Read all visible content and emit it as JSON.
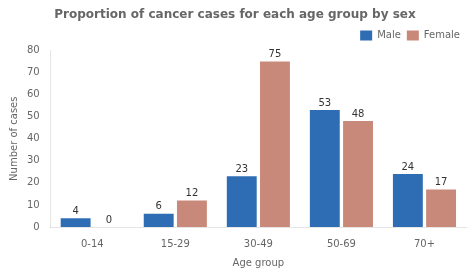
{
  "chart_data": {
    "type": "bar",
    "title": "Proportion of cancer cases for each age group by sex",
    "xlabel": "Age group",
    "ylabel": "Number of cases",
    "categories": [
      "0-14",
      "15-29",
      "30-49",
      "50-69",
      "70+"
    ],
    "series": [
      {
        "name": "Male",
        "color": "#2E6DB4",
        "values": [
          4,
          6,
          23,
          53,
          24
        ]
      },
      {
        "name": "Female",
        "color": "#C9897A",
        "values": [
          0,
          12,
          75,
          48,
          17
        ]
      }
    ],
    "ylim": [
      0,
      80
    ],
    "yticks": [
      0,
      10,
      20,
      30,
      40,
      50,
      60,
      70,
      80
    ],
    "grid": false,
    "legend": "upper right",
    "data_labels": true
  }
}
